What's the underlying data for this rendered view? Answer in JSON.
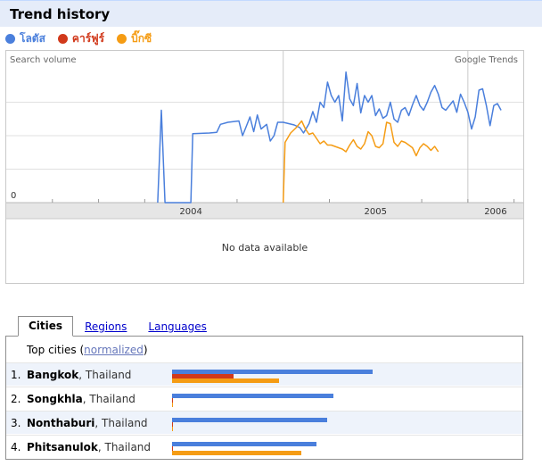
{
  "header": {
    "title": "Trend history"
  },
  "legend": [
    {
      "label": "โลตัส",
      "color": "#4a7fdc"
    },
    {
      "label": "คาร์ฟูร์",
      "color": "#d1391b"
    },
    {
      "label": "บิ๊กซี",
      "color": "#f59c14"
    }
  ],
  "chart": {
    "search_volume_label": "Search volume",
    "source_label": "Google Trends",
    "zero_label": "0",
    "years": [
      "2004",
      "2005",
      "2006"
    ],
    "no_data": "No data available"
  },
  "chart_data": {
    "type": "line",
    "xlabel": "",
    "ylabel": "Search volume",
    "x_range": [
      2003.5,
      2006.3
    ],
    "ylim": [
      0,
      2.0
    ],
    "series": [
      {
        "name": "โลตัส",
        "color": "#4a7fdc",
        "points": [
          [
            2004.32,
            0
          ],
          [
            2004.34,
            1.38
          ],
          [
            2004.36,
            0
          ],
          [
            2004.5,
            0
          ],
          [
            2004.51,
            1.03
          ],
          [
            2004.6,
            1.04
          ],
          [
            2004.64,
            1.05
          ],
          [
            2004.66,
            1.17
          ],
          [
            2004.7,
            1.2
          ],
          [
            2004.76,
            1.22
          ],
          [
            2004.78,
            1.0
          ],
          [
            2004.8,
            1.14
          ],
          [
            2004.82,
            1.28
          ],
          [
            2004.84,
            1.06
          ],
          [
            2004.86,
            1.31
          ],
          [
            2004.88,
            1.1
          ],
          [
            2004.91,
            1.17
          ],
          [
            2004.93,
            0.92
          ],
          [
            2004.95,
            1.0
          ],
          [
            2004.97,
            1.2
          ],
          [
            2005.0,
            1.2
          ],
          [
            2005.03,
            1.18
          ],
          [
            2005.06,
            1.16
          ],
          [
            2005.09,
            1.12
          ],
          [
            2005.11,
            1.04
          ],
          [
            2005.14,
            1.18
          ],
          [
            2005.16,
            1.36
          ],
          [
            2005.18,
            1.2
          ],
          [
            2005.2,
            1.5
          ],
          [
            2005.22,
            1.42
          ],
          [
            2005.24,
            1.8
          ],
          [
            2005.26,
            1.6
          ],
          [
            2005.28,
            1.5
          ],
          [
            2005.3,
            1.6
          ],
          [
            2005.32,
            1.22
          ],
          [
            2005.34,
            1.95
          ],
          [
            2005.36,
            1.55
          ],
          [
            2005.38,
            1.45
          ],
          [
            2005.4,
            1.78
          ],
          [
            2005.42,
            1.34
          ],
          [
            2005.44,
            1.6
          ],
          [
            2005.46,
            1.5
          ],
          [
            2005.48,
            1.6
          ],
          [
            2005.5,
            1.3
          ],
          [
            2005.52,
            1.4
          ],
          [
            2005.54,
            1.26
          ],
          [
            2005.56,
            1.3
          ],
          [
            2005.58,
            1.5
          ],
          [
            2005.6,
            1.25
          ],
          [
            2005.62,
            1.2
          ],
          [
            2005.64,
            1.38
          ],
          [
            2005.66,
            1.42
          ],
          [
            2005.68,
            1.3
          ],
          [
            2005.7,
            1.46
          ],
          [
            2005.72,
            1.6
          ],
          [
            2005.74,
            1.45
          ],
          [
            2005.76,
            1.38
          ],
          [
            2005.78,
            1.5
          ],
          [
            2005.8,
            1.65
          ],
          [
            2005.82,
            1.75
          ],
          [
            2005.84,
            1.62
          ],
          [
            2005.86,
            1.42
          ],
          [
            2005.88,
            1.38
          ],
          [
            2005.9,
            1.45
          ],
          [
            2005.92,
            1.52
          ],
          [
            2005.94,
            1.35
          ],
          [
            2005.96,
            1.62
          ],
          [
            2005.98,
            1.5
          ],
          [
            2006.0,
            1.35
          ],
          [
            2006.02,
            1.1
          ],
          [
            2006.04,
            1.28
          ],
          [
            2006.06,
            1.68
          ],
          [
            2006.08,
            1.7
          ],
          [
            2006.1,
            1.45
          ],
          [
            2006.12,
            1.15
          ],
          [
            2006.14,
            1.45
          ],
          [
            2006.16,
            1.48
          ],
          [
            2006.18,
            1.38
          ]
        ]
      },
      {
        "name": "บิ๊กซี",
        "color": "#f59c14",
        "points": [
          [
            2005.0,
            0
          ],
          [
            2005.01,
            0.9
          ],
          [
            2005.04,
            1.04
          ],
          [
            2005.07,
            1.12
          ],
          [
            2005.1,
            1.22
          ],
          [
            2005.12,
            1.1
          ],
          [
            2005.14,
            1.02
          ],
          [
            2005.16,
            1.04
          ],
          [
            2005.18,
            0.96
          ],
          [
            2005.2,
            0.88
          ],
          [
            2005.22,
            0.92
          ],
          [
            2005.24,
            0.86
          ],
          [
            2005.26,
            0.86
          ],
          [
            2005.28,
            0.84
          ],
          [
            2005.3,
            0.82
          ],
          [
            2005.32,
            0.8
          ],
          [
            2005.34,
            0.76
          ],
          [
            2005.36,
            0.86
          ],
          [
            2005.38,
            0.94
          ],
          [
            2005.4,
            0.84
          ],
          [
            2005.42,
            0.8
          ],
          [
            2005.44,
            0.88
          ],
          [
            2005.46,
            1.06
          ],
          [
            2005.48,
            1.0
          ],
          [
            2005.5,
            0.84
          ],
          [
            2005.52,
            0.82
          ],
          [
            2005.54,
            0.88
          ],
          [
            2005.56,
            1.2
          ],
          [
            2005.58,
            1.18
          ],
          [
            2005.6,
            0.9
          ],
          [
            2005.62,
            0.84
          ],
          [
            2005.64,
            0.92
          ],
          [
            2005.66,
            0.9
          ],
          [
            2005.68,
            0.86
          ],
          [
            2005.7,
            0.82
          ],
          [
            2005.72,
            0.7
          ],
          [
            2005.74,
            0.82
          ],
          [
            2005.76,
            0.88
          ],
          [
            2005.78,
            0.84
          ],
          [
            2005.8,
            0.78
          ],
          [
            2005.82,
            0.84
          ],
          [
            2005.84,
            0.76
          ]
        ]
      }
    ]
  },
  "tabs": [
    {
      "label": "Cities",
      "active": true
    },
    {
      "label": "Regions",
      "active": false
    },
    {
      "label": "Languages",
      "active": false
    }
  ],
  "cities": {
    "heading_prefix": "Top cities (",
    "heading_link": "normalized",
    "heading_suffix": ")",
    "rows": [
      {
        "rank": "1.",
        "city": "Bangkok",
        "country": ", Thailand",
        "bars": [
          0.92,
          0.28,
          0.49
        ]
      },
      {
        "rank": "2.",
        "city": "Songkhla",
        "country": ", Thailand",
        "bars": [
          0.74,
          0.005,
          0.005
        ]
      },
      {
        "rank": "3.",
        "city": "Nonthaburi",
        "country": ", Thailand",
        "bars": [
          0.71,
          0.005,
          0.005
        ]
      },
      {
        "rank": "4.",
        "city": "Phitsanulok",
        "country": ", Thailand",
        "bars": [
          0.66,
          0.005,
          0.59
        ]
      }
    ]
  }
}
